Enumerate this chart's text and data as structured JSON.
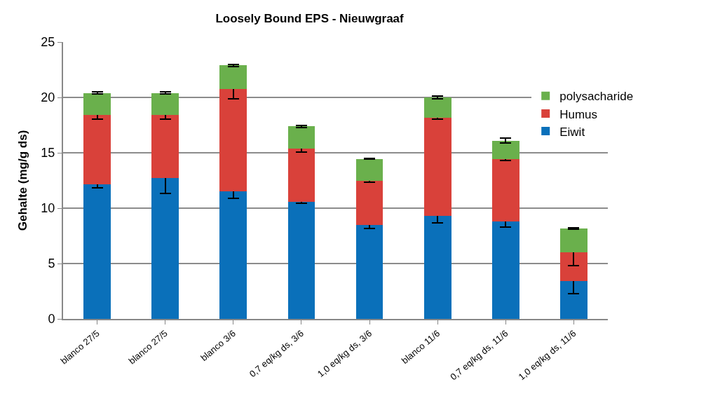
{
  "chart_data": {
    "type": "bar",
    "title": "Loosely Bound EPS - Nieuwgraaf",
    "ylabel": "Gehalte (mg/g ds)",
    "categories": [
      "blanco 27/5",
      "blanco 27/5",
      "blanco 3/6",
      "0,7 eq/kg ds, 3/6",
      "1,0 eq/kg ds, 3/6",
      "blanco 11/6",
      "0,7 eq/kg ds, 11/6",
      "1,0 eq/kg ds, 11/6"
    ],
    "stacked": true,
    "series": [
      {
        "name": "Eiwit",
        "color": "#0a70ba",
        "values": [
          12.15,
          12.7,
          11.5,
          10.55,
          8.45,
          9.3,
          8.8,
          3.4
        ],
        "errors": [
          0.3,
          1.35,
          0.6,
          0.1,
          0.3,
          0.6,
          0.5,
          1.1
        ]
      },
      {
        "name": "Humus",
        "color": "#d9413a",
        "values": [
          6.25,
          5.7,
          9.25,
          4.8,
          4.0,
          8.85,
          5.6,
          2.6
        ],
        "errors": [
          0.35,
          0.35,
          0.9,
          0.3,
          0.1,
          0.1,
          0.1,
          1.2
        ]
      },
      {
        "name": "polysacharide",
        "color": "#6ab04c",
        "values": [
          2.0,
          2.0,
          2.15,
          2.05,
          2.0,
          1.85,
          1.7,
          2.15
        ],
        "errors": [
          0.1,
          0.1,
          0.1,
          0.1,
          0.05,
          0.1,
          0.2,
          0.05
        ]
      }
    ],
    "ylim": [
      0,
      25
    ],
    "yticks": [
      0,
      5,
      10,
      15,
      20,
      25
    ],
    "grid": "y",
    "legend": "right"
  }
}
